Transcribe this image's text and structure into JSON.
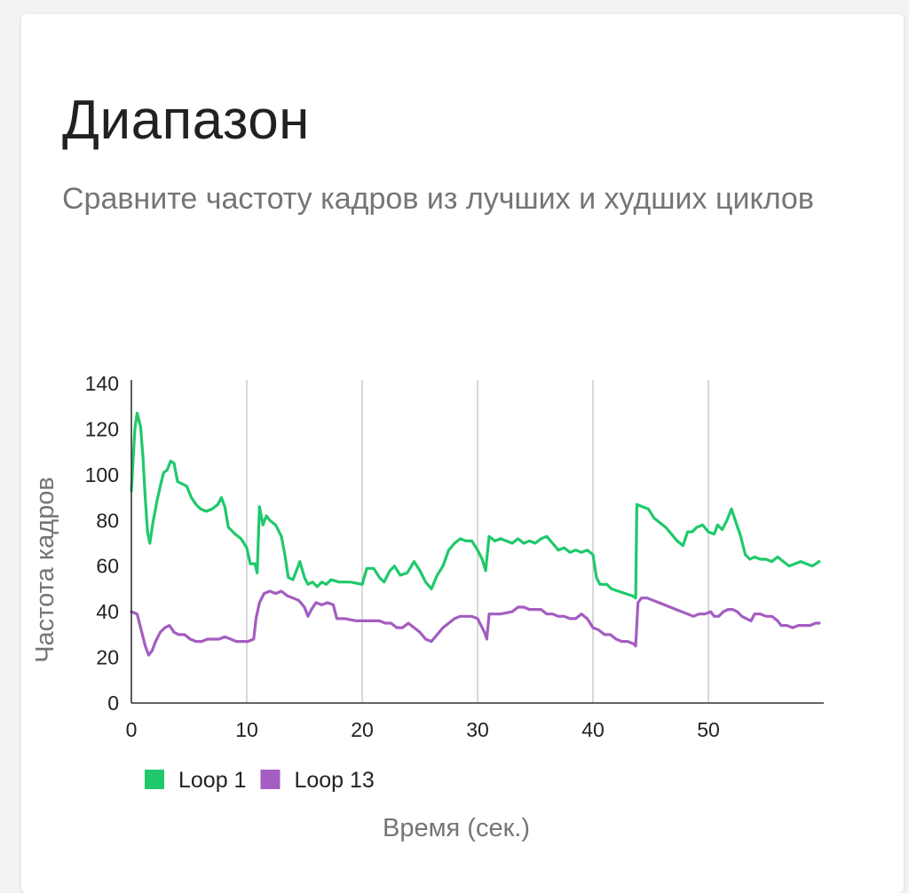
{
  "card": {
    "title": "Диапазон",
    "subtitle": "Сравните частоту кадров из лучших и худших циклов"
  },
  "chart_data": {
    "type": "line",
    "xlabel": "Время (сек.)",
    "ylabel": "Частота кадров",
    "xlim": [
      0,
      60
    ],
    "ylim": [
      0,
      140
    ],
    "x_ticks": [
      0,
      10,
      20,
      30,
      40,
      50
    ],
    "y_ticks": [
      0,
      20,
      40,
      60,
      80,
      100,
      120,
      140
    ],
    "grid": {
      "vertical": true,
      "horizontal": false
    },
    "legend_position": "bottom-left",
    "series": [
      {
        "name": "Loop 1",
        "color": "#1fc96b",
        "points": [
          [
            0,
            93
          ],
          [
            0.3,
            120
          ],
          [
            0.5,
            127
          ],
          [
            0.8,
            121
          ],
          [
            1.0,
            108
          ],
          [
            1.2,
            90
          ],
          [
            1.4,
            75
          ],
          [
            1.6,
            70
          ],
          [
            1.9,
            80
          ],
          [
            2.2,
            88
          ],
          [
            2.5,
            95
          ],
          [
            2.8,
            101
          ],
          [
            3.1,
            102
          ],
          [
            3.4,
            106
          ],
          [
            3.7,
            105
          ],
          [
            4.0,
            97
          ],
          [
            4.4,
            96
          ],
          [
            4.8,
            95
          ],
          [
            5.2,
            90
          ],
          [
            5.6,
            87
          ],
          [
            6.0,
            85
          ],
          [
            6.5,
            84
          ],
          [
            7.0,
            85
          ],
          [
            7.5,
            87
          ],
          [
            7.8,
            90
          ],
          [
            8.1,
            86
          ],
          [
            8.4,
            77
          ],
          [
            9.0,
            74
          ],
          [
            9.5,
            72
          ],
          [
            10.0,
            68
          ],
          [
            10.3,
            61
          ],
          [
            10.7,
            61
          ],
          [
            10.9,
            57
          ],
          [
            11.1,
            86
          ],
          [
            11.4,
            78
          ],
          [
            11.7,
            82
          ],
          [
            12.0,
            80
          ],
          [
            12.5,
            78
          ],
          [
            13.0,
            73
          ],
          [
            13.3,
            65
          ],
          [
            13.6,
            55
          ],
          [
            14.0,
            54
          ],
          [
            14.3,
            58
          ],
          [
            14.6,
            62
          ],
          [
            15.0,
            55
          ],
          [
            15.3,
            52
          ],
          [
            15.7,
            53
          ],
          [
            16.1,
            51
          ],
          [
            16.5,
            53
          ],
          [
            16.9,
            52
          ],
          [
            17.3,
            54
          ],
          [
            18,
            53
          ],
          [
            19,
            53
          ],
          [
            20,
            52
          ],
          [
            20.4,
            59
          ],
          [
            21,
            59
          ],
          [
            21.5,
            55
          ],
          [
            21.9,
            53
          ],
          [
            22.4,
            58
          ],
          [
            22.8,
            60
          ],
          [
            23.3,
            56
          ],
          [
            23.9,
            57
          ],
          [
            24.5,
            62
          ],
          [
            25,
            58
          ],
          [
            25.5,
            53
          ],
          [
            26,
            50
          ],
          [
            26.5,
            56
          ],
          [
            27,
            60
          ],
          [
            27.5,
            67
          ],
          [
            28,
            70
          ],
          [
            28.5,
            72
          ],
          [
            29,
            71
          ],
          [
            29.5,
            71
          ],
          [
            30,
            67
          ],
          [
            30.4,
            63
          ],
          [
            30.7,
            58
          ],
          [
            31,
            73
          ],
          [
            31.5,
            71
          ],
          [
            32,
            72
          ],
          [
            33,
            70
          ],
          [
            33.5,
            72
          ],
          [
            34,
            70
          ],
          [
            34.5,
            71
          ],
          [
            35,
            70
          ],
          [
            35.5,
            72
          ],
          [
            36,
            73
          ],
          [
            36.5,
            70
          ],
          [
            37,
            67
          ],
          [
            37.5,
            68
          ],
          [
            38,
            66
          ],
          [
            38.5,
            67
          ],
          [
            39,
            66
          ],
          [
            39.5,
            67
          ],
          [
            40,
            65
          ],
          [
            40.3,
            55
          ],
          [
            40.6,
            52
          ],
          [
            41.2,
            52
          ],
          [
            41.6,
            50
          ],
          [
            42.2,
            49
          ],
          [
            42.8,
            48
          ],
          [
            43.4,
            47
          ],
          [
            43.7,
            46
          ],
          [
            43.8,
            87
          ],
          [
            44.3,
            86
          ],
          [
            44.8,
            85
          ],
          [
            45.3,
            81
          ],
          [
            45.8,
            79
          ],
          [
            46.3,
            77
          ],
          [
            46.8,
            74
          ],
          [
            47.3,
            71
          ],
          [
            47.8,
            69
          ],
          [
            48.2,
            75
          ],
          [
            48.6,
            75
          ],
          [
            49,
            77
          ],
          [
            49.5,
            78
          ],
          [
            50,
            75
          ],
          [
            50.5,
            74
          ],
          [
            50.8,
            78
          ],
          [
            51.2,
            76
          ],
          [
            51.6,
            80
          ],
          [
            52,
            85
          ],
          [
            52.4,
            79
          ],
          [
            52.8,
            73
          ],
          [
            53.2,
            65
          ],
          [
            53.6,
            63
          ],
          [
            54,
            64
          ],
          [
            54.5,
            63
          ],
          [
            55,
            63
          ],
          [
            55.5,
            62
          ],
          [
            56,
            64
          ],
          [
            56.5,
            62
          ],
          [
            57,
            60
          ],
          [
            57.5,
            61
          ],
          [
            58,
            62
          ],
          [
            58.5,
            61
          ],
          [
            59,
            60
          ],
          [
            59.6,
            62
          ]
        ]
      },
      {
        "name": "Loop 13",
        "color": "#a45dc0",
        "points": [
          [
            0,
            40
          ],
          [
            0.5,
            39
          ],
          [
            0.9,
            31
          ],
          [
            1.2,
            25
          ],
          [
            1.5,
            21
          ],
          [
            1.8,
            23
          ],
          [
            2.1,
            27
          ],
          [
            2.5,
            31
          ],
          [
            2.9,
            33
          ],
          [
            3.3,
            34
          ],
          [
            3.7,
            31
          ],
          [
            4.1,
            30
          ],
          [
            4.6,
            30
          ],
          [
            5.1,
            28
          ],
          [
            5.6,
            27
          ],
          [
            6.1,
            27
          ],
          [
            6.6,
            28
          ],
          [
            7.1,
            28
          ],
          [
            7.6,
            28
          ],
          [
            8.1,
            29
          ],
          [
            8.6,
            28
          ],
          [
            9.1,
            27
          ],
          [
            9.6,
            27
          ],
          [
            10.1,
            27
          ],
          [
            10.6,
            28
          ],
          [
            10.8,
            37
          ],
          [
            11.1,
            44
          ],
          [
            11.5,
            48
          ],
          [
            12,
            49
          ],
          [
            12.5,
            48
          ],
          [
            13,
            49
          ],
          [
            13.5,
            47
          ],
          [
            14,
            46
          ],
          [
            14.5,
            45
          ],
          [
            15,
            42
          ],
          [
            15.3,
            38
          ],
          [
            15.6,
            41
          ],
          [
            16,
            44
          ],
          [
            16.5,
            43
          ],
          [
            17,
            44
          ],
          [
            17.5,
            43
          ],
          [
            17.8,
            37
          ],
          [
            18.5,
            37
          ],
          [
            19.5,
            36
          ],
          [
            20.5,
            36
          ],
          [
            21.5,
            36
          ],
          [
            22,
            35
          ],
          [
            22.5,
            35
          ],
          [
            23,
            33
          ],
          [
            23.5,
            33
          ],
          [
            24,
            35
          ],
          [
            24.5,
            33
          ],
          [
            25,
            31
          ],
          [
            25.5,
            28
          ],
          [
            26,
            27
          ],
          [
            26.5,
            30
          ],
          [
            27,
            33
          ],
          [
            27.5,
            35
          ],
          [
            28,
            37
          ],
          [
            28.5,
            38
          ],
          [
            29,
            38
          ],
          [
            29.5,
            38
          ],
          [
            30,
            37
          ],
          [
            30.3,
            34
          ],
          [
            30.6,
            31
          ],
          [
            30.8,
            28
          ],
          [
            31,
            39
          ],
          [
            31.5,
            39
          ],
          [
            32,
            39
          ],
          [
            33,
            40
          ],
          [
            33.5,
            42
          ],
          [
            34,
            42
          ],
          [
            34.5,
            41
          ],
          [
            35,
            41
          ],
          [
            35.5,
            41
          ],
          [
            36,
            39
          ],
          [
            36.5,
            39
          ],
          [
            37,
            38
          ],
          [
            37.5,
            38
          ],
          [
            38,
            37
          ],
          [
            38.5,
            37
          ],
          [
            39,
            39
          ],
          [
            39.5,
            37
          ],
          [
            40,
            33
          ],
          [
            40.5,
            32
          ],
          [
            41,
            30
          ],
          [
            41.5,
            30
          ],
          [
            42,
            28
          ],
          [
            42.5,
            27
          ],
          [
            43,
            27
          ],
          [
            43.5,
            26
          ],
          [
            43.7,
            25
          ],
          [
            43.9,
            44
          ],
          [
            44.2,
            46
          ],
          [
            44.7,
            46
          ],
          [
            45.2,
            45
          ],
          [
            45.7,
            44
          ],
          [
            46.2,
            43
          ],
          [
            46.7,
            42
          ],
          [
            47.2,
            41
          ],
          [
            47.7,
            40
          ],
          [
            48.2,
            39
          ],
          [
            48.7,
            38
          ],
          [
            49.2,
            39
          ],
          [
            49.7,
            39
          ],
          [
            50.2,
            40
          ],
          [
            50.5,
            38
          ],
          [
            50.9,
            38
          ],
          [
            51.3,
            40
          ],
          [
            51.7,
            41
          ],
          [
            52.1,
            41
          ],
          [
            52.5,
            40
          ],
          [
            52.9,
            38
          ],
          [
            53.3,
            37
          ],
          [
            53.7,
            36
          ],
          [
            54,
            39
          ],
          [
            54.5,
            39
          ],
          [
            55,
            38
          ],
          [
            55.5,
            38
          ],
          [
            56,
            36
          ],
          [
            56.3,
            34
          ],
          [
            56.8,
            34
          ],
          [
            57.3,
            33
          ],
          [
            57.8,
            34
          ],
          [
            58.3,
            34
          ],
          [
            58.8,
            34
          ],
          [
            59.3,
            35
          ],
          [
            59.6,
            35
          ]
        ]
      }
    ]
  }
}
